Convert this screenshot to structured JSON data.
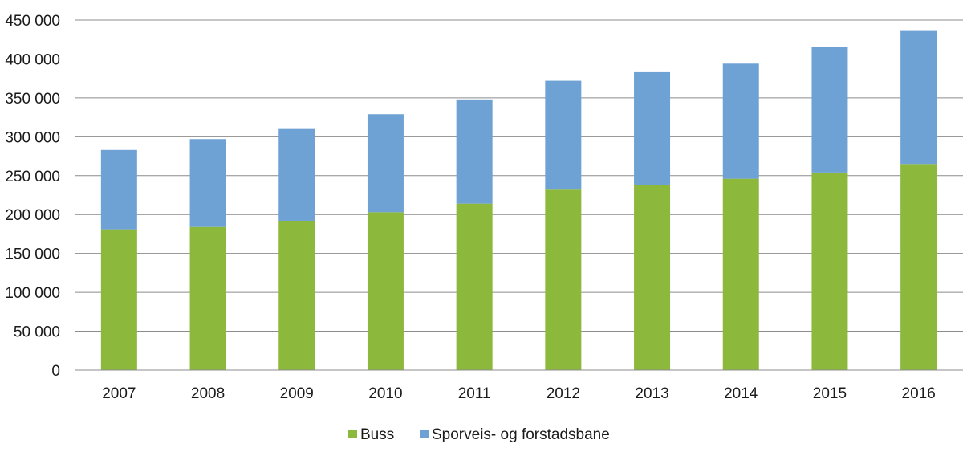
{
  "chart_data": {
    "type": "bar",
    "stacked": true,
    "categories": [
      "2007",
      "2008",
      "2009",
      "2010",
      "2011",
      "2012",
      "2013",
      "2014",
      "2015",
      "2016"
    ],
    "series": [
      {
        "name": "Buss",
        "color": "#8cb83c",
        "values": [
          181000,
          184000,
          192000,
          203000,
          214000,
          232000,
          238000,
          246000,
          254000,
          265000
        ]
      },
      {
        "name": "Sporveis- og forstadsbane",
        "color": "#6fa2d4",
        "values": [
          102000,
          113000,
          118000,
          126000,
          134000,
          140000,
          145000,
          148000,
          161000,
          172000
        ]
      }
    ],
    "ylim": [
      0,
      450000
    ],
    "yticks": [
      0,
      50000,
      100000,
      150000,
      200000,
      250000,
      300000,
      350000,
      400000,
      450000
    ],
    "ytick_labels": [
      "0",
      "50 000",
      "100 000",
      "150 000",
      "200 000",
      "250 000",
      "300 000",
      "350 000",
      "400 000",
      "450 000"
    ],
    "title": "",
    "xlabel": "",
    "ylabel": "",
    "grid": "horizontal",
    "legend_position": "bottom-center",
    "gridline_color": "#8c8c8c"
  }
}
